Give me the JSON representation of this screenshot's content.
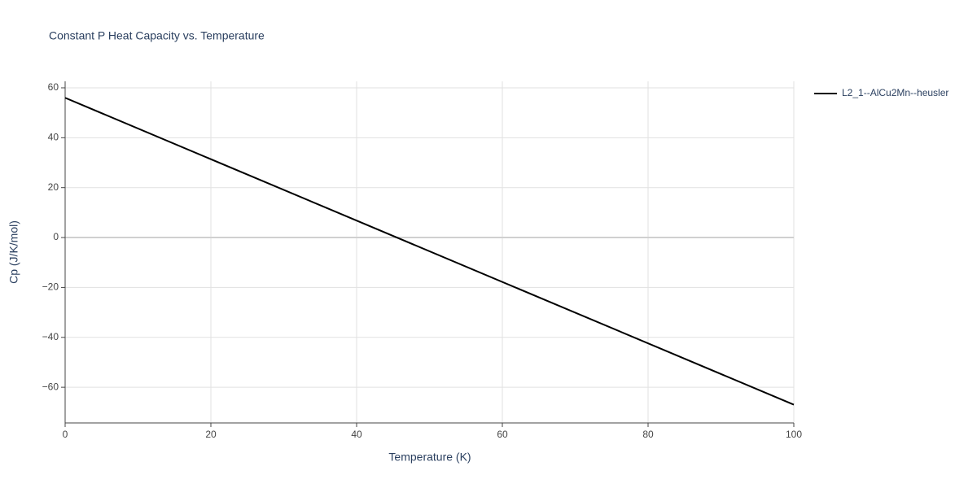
{
  "chart_data": {
    "type": "line",
    "title": "Constant P Heat Capacity vs. Temperature",
    "x_label": "Temperature (K)",
    "y_label": "Cp (J/K/mol)",
    "x": [
      0,
      100
    ],
    "series": [
      {
        "name": "L2_1--AlCu2Mn--heusler",
        "color": "#000000",
        "values": [
          56,
          -67
        ]
      }
    ],
    "xlim": [
      0,
      100
    ],
    "xticks": [
      0,
      20,
      40,
      60,
      80,
      100
    ],
    "ylim": [
      -74.3,
      62.6
    ],
    "yticks": [
      {
        "value": -60,
        "label": "−60"
      },
      {
        "value": -40,
        "label": "−40"
      },
      {
        "value": -20,
        "label": "−20"
      },
      0,
      20,
      40,
      60
    ],
    "grid": true,
    "legend": "top-right"
  }
}
